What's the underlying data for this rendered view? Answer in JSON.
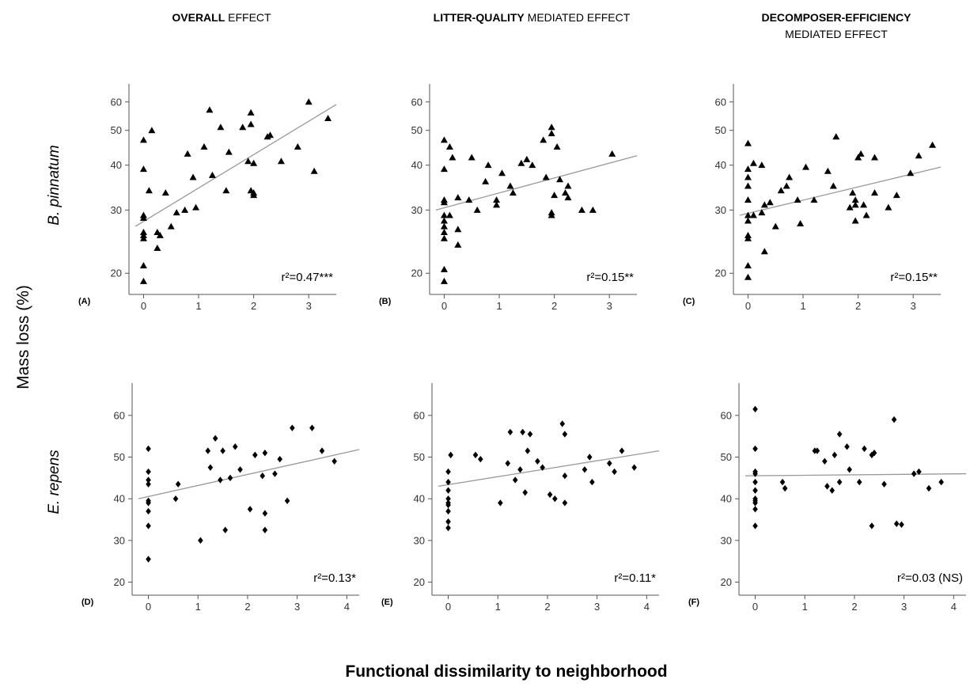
{
  "figure": {
    "column_titles": [
      {
        "bold": "OVERALL",
        "rest": " EFFECT",
        "line2": ""
      },
      {
        "bold": "LITTER-QUALITY",
        "rest": " MEDIATED EFFECT",
        "line2": ""
      },
      {
        "bold": "DECOMPOSER-EFFICIENCY",
        "rest": "",
        "line2": "MEDIATED EFFECT"
      }
    ],
    "row_labels": [
      "B. pinnatum",
      "E. repens"
    ],
    "ylabel": "Mass loss (%)",
    "xlabel": "Functional dissimilarity to neighborhood",
    "colors": {
      "points": "#000000",
      "fit_line": "#999999",
      "axis": "#555555"
    }
  },
  "chart_data": [
    {
      "panel": "(A)",
      "type": "scatter",
      "row": "B. pinnatum",
      "column": "OVERALL EFFECT",
      "marker": "triangle",
      "x_ticks": [
        0,
        1,
        2,
        3
      ],
      "y_ticks": [
        20,
        30,
        40,
        50,
        60
      ],
      "y_scale": "log",
      "xlim": [
        -0.15,
        3.5
      ],
      "ylim": [
        18,
        66
      ],
      "fit": {
        "x": [
          -0.15,
          3.5
        ],
        "y": [
          27,
          59
        ]
      },
      "r2_label": "r²=0.47***",
      "points": [
        [
          0,
          19
        ],
        [
          0,
          21
        ],
        [
          0,
          25
        ],
        [
          0,
          25.5
        ],
        [
          0,
          26
        ],
        [
          0,
          28.5
        ],
        [
          0,
          29
        ],
        [
          0,
          39
        ],
        [
          0,
          47
        ],
        [
          0.1,
          34
        ],
        [
          0.15,
          50
        ],
        [
          0.25,
          23.5
        ],
        [
          0.25,
          26
        ],
        [
          0.3,
          25.5
        ],
        [
          0.4,
          33.5
        ],
        [
          0.5,
          27
        ],
        [
          0.6,
          29.5
        ],
        [
          0.75,
          30
        ],
        [
          0.8,
          43
        ],
        [
          0.9,
          37
        ],
        [
          0.95,
          30.5
        ],
        [
          1.1,
          45
        ],
        [
          1.2,
          57
        ],
        [
          1.25,
          37.5
        ],
        [
          1.4,
          51
        ],
        [
          1.5,
          34
        ],
        [
          1.55,
          43.5
        ],
        [
          1.8,
          51
        ],
        [
          1.9,
          41
        ],
        [
          1.95,
          52
        ],
        [
          1.95,
          34
        ],
        [
          1.95,
          56
        ],
        [
          2.0,
          33
        ],
        [
          2.0,
          40.5
        ],
        [
          2.0,
          33.5
        ],
        [
          2.25,
          48
        ],
        [
          2.3,
          48.5
        ],
        [
          2.5,
          41
        ],
        [
          2.8,
          45
        ],
        [
          3.0,
          60
        ],
        [
          3.1,
          38.5
        ],
        [
          3.35,
          54
        ]
      ]
    },
    {
      "panel": "(B)",
      "type": "scatter",
      "row": "B. pinnatum",
      "column": "LITTER-QUALITY MEDIATED EFFECT",
      "marker": "triangle",
      "x_ticks": [
        0,
        1,
        2,
        3
      ],
      "y_ticks": [
        20,
        30,
        40,
        50,
        60
      ],
      "y_scale": "log",
      "xlim": [
        -0.15,
        3.5
      ],
      "ylim": [
        18,
        66
      ],
      "fit": {
        "x": [
          -0.15,
          3.5
        ],
        "y": [
          30,
          42.5
        ]
      },
      "r2_label": "r²=0.15**",
      "points": [
        [
          0,
          19
        ],
        [
          0,
          20.5
        ],
        [
          0,
          25
        ],
        [
          0,
          26
        ],
        [
          0,
          27
        ],
        [
          0,
          28
        ],
        [
          0,
          29
        ],
        [
          0,
          31.5
        ],
        [
          0,
          32
        ],
        [
          0,
          39
        ],
        [
          0,
          47
        ],
        [
          0.1,
          29
        ],
        [
          0.1,
          45
        ],
        [
          0.15,
          42
        ],
        [
          0.25,
          26.5
        ],
        [
          0.25,
          24
        ],
        [
          0.25,
          32.5
        ],
        [
          0.45,
          32
        ],
        [
          0.5,
          42
        ],
        [
          0.6,
          30
        ],
        [
          0.75,
          36
        ],
        [
          0.8,
          40
        ],
        [
          0.95,
          31
        ],
        [
          0.95,
          32
        ],
        [
          1.05,
          38
        ],
        [
          1.2,
          35
        ],
        [
          1.25,
          33.5
        ],
        [
          1.4,
          40.5
        ],
        [
          1.5,
          41.5
        ],
        [
          1.6,
          40
        ],
        [
          1.8,
          47
        ],
        [
          1.85,
          37
        ],
        [
          1.95,
          29
        ],
        [
          1.95,
          29.5
        ],
        [
          1.95,
          49
        ],
        [
          1.95,
          51
        ],
        [
          2.0,
          33
        ],
        [
          2.05,
          45
        ],
        [
          2.1,
          36.5
        ],
        [
          2.2,
          33.5
        ],
        [
          2.25,
          32.5
        ],
        [
          2.25,
          35
        ],
        [
          2.5,
          30
        ],
        [
          2.7,
          30
        ],
        [
          3.05,
          43
        ]
      ]
    },
    {
      "panel": "(C)",
      "type": "scatter",
      "row": "B. pinnatum",
      "column": "DECOMPOSER-EFFICIENCY MEDIATED EFFECT",
      "marker": "triangle",
      "x_ticks": [
        0,
        1,
        2,
        3
      ],
      "y_ticks": [
        20,
        30,
        40,
        50,
        60
      ],
      "y_scale": "log",
      "xlim": [
        -0.15,
        3.5
      ],
      "ylim": [
        18,
        66
      ],
      "fit": {
        "x": [
          -0.15,
          3.5
        ],
        "y": [
          29,
          39.5
        ]
      },
      "r2_label": "r²=0.15**",
      "points": [
        [
          0,
          19.5
        ],
        [
          0,
          21
        ],
        [
          0,
          25
        ],
        [
          0,
          25.5
        ],
        [
          0,
          28
        ],
        [
          0,
          29
        ],
        [
          0,
          32
        ],
        [
          0,
          35
        ],
        [
          0,
          37
        ],
        [
          0,
          39
        ],
        [
          0,
          46
        ],
        [
          0.1,
          29
        ],
        [
          0.1,
          40.5
        ],
        [
          0.25,
          29.5
        ],
        [
          0.25,
          40
        ],
        [
          0.3,
          23
        ],
        [
          0.3,
          31
        ],
        [
          0.4,
          31.5
        ],
        [
          0.5,
          27
        ],
        [
          0.6,
          34
        ],
        [
          0.7,
          35
        ],
        [
          0.75,
          37
        ],
        [
          0.9,
          32
        ],
        [
          0.95,
          27.5
        ],
        [
          1.05,
          39.5
        ],
        [
          1.2,
          32
        ],
        [
          1.45,
          38.5
        ],
        [
          1.55,
          35
        ],
        [
          1.6,
          48
        ],
        [
          1.85,
          30.5
        ],
        [
          1.9,
          33.5
        ],
        [
          1.95,
          28
        ],
        [
          1.95,
          31
        ],
        [
          1.95,
          32
        ],
        [
          2.0,
          42
        ],
        [
          2.05,
          43
        ],
        [
          2.1,
          31
        ],
        [
          2.15,
          29
        ],
        [
          2.3,
          33.5
        ],
        [
          2.3,
          42
        ],
        [
          2.55,
          30.5
        ],
        [
          2.7,
          33
        ],
        [
          2.95,
          38
        ],
        [
          3.1,
          42.5
        ],
        [
          3.35,
          45.5
        ]
      ]
    },
    {
      "panel": "(D)",
      "type": "scatter",
      "row": "E. repens",
      "column": "OVERALL EFFECT",
      "marker": "diamond",
      "x_ticks": [
        0,
        1,
        2,
        3,
        4
      ],
      "y_ticks": [
        20,
        30,
        40,
        50,
        60
      ],
      "y_scale": "linear",
      "xlim": [
        -0.2,
        4.25
      ],
      "ylim": [
        18,
        67
      ],
      "fit": {
        "x": [
          -0.2,
          4.25
        ],
        "y": [
          40,
          51.8
        ]
      },
      "r2_label": "r²=0.13*",
      "points": [
        [
          0,
          25.5
        ],
        [
          0,
          33.5
        ],
        [
          0,
          37
        ],
        [
          0,
          39
        ],
        [
          0,
          39.5
        ],
        [
          0,
          43.5
        ],
        [
          0,
          44.5
        ],
        [
          0,
          46.5
        ],
        [
          0,
          52
        ],
        [
          0.55,
          40
        ],
        [
          0.6,
          43.5
        ],
        [
          1.05,
          30
        ],
        [
          1.2,
          51.5
        ],
        [
          1.25,
          47.5
        ],
        [
          1.35,
          54.5
        ],
        [
          1.45,
          44.5
        ],
        [
          1.5,
          51.5
        ],
        [
          1.55,
          32.5
        ],
        [
          1.65,
          45
        ],
        [
          1.75,
          52.5
        ],
        [
          1.85,
          47
        ],
        [
          2.05,
          37.5
        ],
        [
          2.15,
          50.5
        ],
        [
          2.3,
          45.5
        ],
        [
          2.35,
          51
        ],
        [
          2.35,
          36.5
        ],
        [
          2.35,
          32.5
        ],
        [
          2.55,
          46
        ],
        [
          2.65,
          49.5
        ],
        [
          2.8,
          39.5
        ],
        [
          2.9,
          57
        ],
        [
          3.3,
          57
        ],
        [
          3.5,
          51.5
        ],
        [
          3.75,
          49
        ]
      ]
    },
    {
      "panel": "(E)",
      "type": "scatter",
      "row": "E. repens",
      "column": "LITTER-QUALITY MEDIATED EFFECT",
      "marker": "diamond",
      "x_ticks": [
        0,
        1,
        2,
        3,
        4
      ],
      "y_ticks": [
        20,
        30,
        40,
        50,
        60
      ],
      "y_scale": "linear",
      "xlim": [
        -0.2,
        4.25
      ],
      "ylim": [
        18,
        67
      ],
      "fit": {
        "x": [
          -0.2,
          4.25
        ],
        "y": [
          43,
          51.5
        ]
      },
      "r2_label": "r²=0.11*",
      "points": [
        [
          0,
          33
        ],
        [
          0,
          34.5
        ],
        [
          0,
          37
        ],
        [
          0,
          38.5
        ],
        [
          0,
          39
        ],
        [
          0,
          40
        ],
        [
          0,
          42
        ],
        [
          0,
          44
        ],
        [
          0,
          46.5
        ],
        [
          0.05,
          50.5
        ],
        [
          0.55,
          50.5
        ],
        [
          0.65,
          49.5
        ],
        [
          1.05,
          39
        ],
        [
          1.2,
          48.5
        ],
        [
          1.25,
          56
        ],
        [
          1.35,
          44.5
        ],
        [
          1.45,
          47
        ],
        [
          1.5,
          56
        ],
        [
          1.55,
          41.5
        ],
        [
          1.6,
          51.5
        ],
        [
          1.65,
          55.5
        ],
        [
          1.8,
          49
        ],
        [
          1.9,
          47.5
        ],
        [
          2.05,
          41
        ],
        [
          2.15,
          40
        ],
        [
          2.3,
          58
        ],
        [
          2.35,
          55.5
        ],
        [
          2.35,
          45.5
        ],
        [
          2.35,
          39
        ],
        [
          2.75,
          47
        ],
        [
          2.85,
          50
        ],
        [
          2.9,
          44
        ],
        [
          3.25,
          48.5
        ],
        [
          3.35,
          46.5
        ],
        [
          3.5,
          51.5
        ],
        [
          3.75,
          47.5
        ]
      ]
    },
    {
      "panel": "(F)",
      "type": "scatter",
      "row": "E. repens",
      "column": "DECOMPOSER-EFFICIENCY MEDIATED EFFECT",
      "marker": "diamond",
      "x_ticks": [
        0,
        1,
        2,
        3,
        4
      ],
      "y_ticks": [
        20,
        30,
        40,
        50,
        60
      ],
      "y_scale": "linear",
      "xlim": [
        -0.2,
        4.25
      ],
      "ylim": [
        18,
        67
      ],
      "fit": {
        "x": [
          -0.2,
          4.25
        ],
        "y": [
          45.5,
          46
        ]
      },
      "r2_label": "r²=0.03 (NS)",
      "points": [
        [
          0,
          33.5
        ],
        [
          0,
          37.5
        ],
        [
          0,
          39
        ],
        [
          0,
          39.5
        ],
        [
          0,
          40
        ],
        [
          0,
          42
        ],
        [
          0,
          44
        ],
        [
          0,
          46
        ],
        [
          0,
          46.5
        ],
        [
          0,
          52
        ],
        [
          0,
          61.5
        ],
        [
          0.55,
          44
        ],
        [
          0.6,
          42.5
        ],
        [
          1.2,
          51.5
        ],
        [
          1.25,
          51.5
        ],
        [
          1.4,
          49
        ],
        [
          1.45,
          43
        ],
        [
          1.55,
          42
        ],
        [
          1.6,
          50.5
        ],
        [
          1.7,
          55.5
        ],
        [
          1.7,
          44
        ],
        [
          1.85,
          52.5
        ],
        [
          1.9,
          47
        ],
        [
          2.1,
          44
        ],
        [
          2.2,
          52
        ],
        [
          2.35,
          50.5
        ],
        [
          2.4,
          51
        ],
        [
          2.35,
          33.5
        ],
        [
          2.6,
          43.5
        ],
        [
          2.8,
          59
        ],
        [
          2.85,
          34
        ],
        [
          2.95,
          33.8
        ],
        [
          3.2,
          46
        ],
        [
          3.3,
          46.5
        ],
        [
          3.5,
          42.5
        ],
        [
          3.75,
          44
        ]
      ]
    }
  ]
}
